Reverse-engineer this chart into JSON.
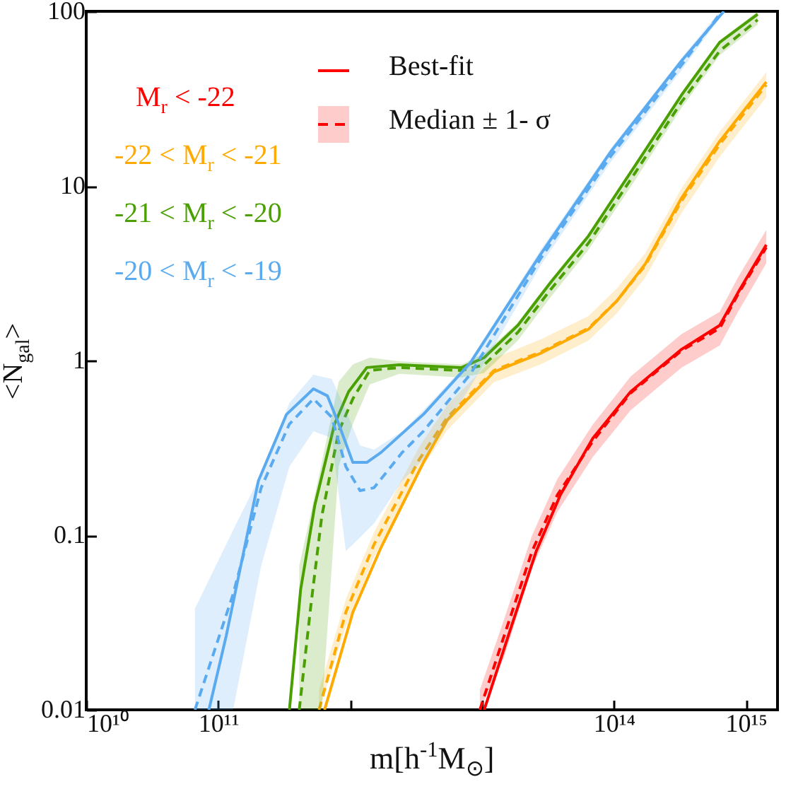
{
  "chart_data": {
    "type": "line",
    "log": "xy",
    "xlabel": "m[h$^{-1}$M$_{⊙}$]",
    "ylabel": "<N$_{gal}$>",
    "xlim": [
      10000000000.0,
      1740000000000000.0
    ],
    "ylim": [
      0.01,
      100
    ],
    "xticks": [
      {
        "value": 10000000000.0,
        "label": "10¹⁰"
      },
      {
        "value": 100000000000.0,
        "label": "10¹¹"
      },
      {
        "value": 1000000000000.0,
        "label": null
      },
      {
        "value": 10000000000000.0,
        "label": null
      },
      {
        "value": 100000000000000.0,
        "label": "10¹⁴"
      },
      {
        "value": 1000000000000000.0,
        "label": "10¹⁵"
      }
    ],
    "yticks": [
      0.01,
      0.1,
      1,
      10,
      100
    ],
    "legend": "top left",
    "annotations": [
      "Best-fit",
      "Median ± 1- σ"
    ],
    "series": [
      {
        "name": "M$_{r}$ < -22",
        "color": "#ff0000",
        "x": [
          10400000000000.0,
          15800000000000.0,
          25800000000000.0,
          39300000000000.0,
          69200000000000.0,
          134000000000000.0,
          326000000000000.0,
          634000000000000.0,
          873000000000000.0,
          1430000000000000.0
        ],
        "values": [
          0.01,
          0.0264,
          0.081,
          0.17,
          0.359,
          0.664,
          1.16,
          1.59,
          2.45,
          4.6
        ]
      },
      {
        "color": "#ff0000",
        "line_style": "dashed",
        "x": [
          9640000000000.0,
          14700000000000.0,
          24000000000000.0,
          37300000000000.0,
          69200000000000.0,
          134000000000000.0,
          326000000000000.0,
          634000000000000.0,
          873000000000000.0,
          1430000000000000.0
        ],
        "values": [
          0.01,
          0.0264,
          0.081,
          0.17,
          0.345,
          0.652,
          1.14,
          1.53,
          2.4,
          4.45
        ],
        "lower": [
          0.01,
          0.02,
          0.065,
          0.136,
          0.28,
          0.52,
          0.91,
          1.22,
          1.9,
          3.6
        ],
        "upper": [
          0.013,
          0.033,
          0.1,
          0.21,
          0.43,
          0.81,
          1.42,
          1.9,
          3.0,
          5.6
        ]
      },
      {
        "name": "-22 < M$_{r}$ < -21",
        "color": "#ffaa00",
        "x": [
          641000000000.0,
          1050000000000.0,
          1720000000000.0,
          3600000000000.0,
          5470000000000.0,
          12300000000000.0,
          27800000000000.0,
          64100000000000.0,
          105000000000000.0,
          172000000000000.0,
          326000000000000.0,
          634000000000000.0,
          1430000000000000.0
        ],
        "values": [
          0.01,
          0.0362,
          0.0853,
          0.261,
          0.457,
          0.861,
          1.1,
          1.51,
          2.19,
          3.55,
          8.53,
          18.0,
          39.4
        ]
      },
      {
        "color": "#ffaa00",
        "line_style": "dashed",
        "x": [
          582000000000.0,
          929000000000.0,
          1520000000000.0,
          3340000000000.0,
          5470000000000.0,
          12300000000000.0,
          27800000000000.0,
          64100000000000.0,
          105000000000000.0,
          172000000000000.0,
          326000000000000.0,
          634000000000000.0,
          1430000000000000.0
        ],
        "values": [
          0.01,
          0.0362,
          0.0885,
          0.271,
          0.474,
          0.877,
          1.12,
          1.53,
          2.19,
          3.49,
          8.22,
          17.3,
          37.9
        ],
        "lower": [
          0.01,
          0.03,
          0.075,
          0.23,
          0.4,
          0.75,
          0.95,
          1.3,
          1.86,
          2.97,
          7.0,
          14.7,
          32.2
        ],
        "upper": [
          0.013,
          0.043,
          0.104,
          0.32,
          0.56,
          1.03,
          1.32,
          1.8,
          2.58,
          4.1,
          9.7,
          20.4,
          44.7
        ]
      },
      {
        "name": "-21 < M$_{r}$ < -20",
        "color": "#4aa000",
        "x": [
          347000000000.0,
          422000000000.0,
          541000000000.0,
          763000000000.0,
          975000000000.0,
          1340000000000.0,
          2370000000000.0,
          7000000000000.0,
          10400000000000.0,
          18700000000000.0,
          33000000000000.0,
          64100000000000.0,
          145000000000000.0,
          326000000000000.0,
          634000000000000.0,
          1230000000000000.0
        ],
        "values": [
          0.01,
          0.0488,
          0.149,
          0.433,
          0.664,
          0.912,
          0.946,
          0.912,
          1.04,
          1.59,
          2.79,
          5.16,
          13.1,
          33.2,
          66.4,
          96.3
        ]
      },
      {
        "color": "#4aa000",
        "line_style": "dashed",
        "x": [
          412000000000.0,
          502000000000.0,
          611000000000.0,
          821000000000.0,
          1050000000000.0,
          1410000000000.0,
          2370000000000.0,
          7000000000000.0,
          10400000000000.0,
          18700000000000.0,
          33000000000000.0,
          64100000000000.0,
          145000000000000.0,
          326000000000000.0,
          634000000000000.0,
          1230000000000000.0
        ],
        "values": [
          0.01,
          0.0383,
          0.129,
          0.394,
          0.604,
          0.877,
          0.912,
          0.877,
          0.946,
          1.45,
          2.54,
          4.7,
          11.9,
          30.3,
          59.3,
          89.4
        ],
        "lower": [
          0.01,
          0.01,
          0.01,
          0.25,
          0.433,
          0.73,
          0.84,
          0.8,
          0.85,
          1.3,
          2.3,
          4.3,
          10.8,
          28,
          56,
          84
        ],
        "upper": [
          0.067,
          0.131,
          0.261,
          0.757,
          0.95,
          1.04,
          0.99,
          0.95,
          1.1,
          1.65,
          2.9,
          5.3,
          13.3,
          34,
          68,
          100
        ]
      },
      {
        "name": "-20 < M$_{r}$ < -19",
        "color": "#5aaaf0",
        "x": [
          85100000000.0,
          115000000000.0,
          202000000000.0,
          330000000000.0,
          528000000000.0,
          674000000000.0,
          821000000000.0,
          1050000000000.0,
          1340000000000.0,
          1720000000000.0,
          3600000000000.0,
          8110000000000.0,
          27800000000000.0,
          95300000000000.0,
          326000000000000.0,
          682000000000000.0
        ],
        "values": [
          0.01,
          0.0264,
          0.205,
          0.492,
          0.689,
          0.628,
          0.433,
          0.261,
          0.261,
          0.298,
          0.492,
          0.964,
          4.05,
          15.8,
          52.1,
          100
        ]
      },
      {
        "color": "#5aaaf0",
        "line_style": "dashed",
        "x": [
          66700000000.0,
          130000000000.0,
          212000000000.0,
          347000000000.0,
          528000000000.0,
          726000000000.0,
          929000000000.0,
          1190000000000.0,
          1520000000000.0,
          2490000000000.0,
          3600000000000.0,
          8110000000000.0,
          27800000000000.0,
          95300000000000.0,
          326000000000000.0,
          634000000000000.0
        ],
        "values": [
          0.01,
          0.0461,
          0.187,
          0.433,
          0.604,
          0.474,
          0.247,
          0.18,
          0.187,
          0.298,
          0.394,
          0.83,
          3.83,
          14.9,
          49.2,
          96.3
        ],
        "lower": [
          0.01,
          0.01,
          0.067,
          0.247,
          0.394,
          0.36,
          0.081,
          0.097,
          0.117,
          0.205,
          0.271,
          0.7,
          3.5,
          13.8,
          46,
          92
        ],
        "upper": [
          0.038,
          0.107,
          0.225,
          0.571,
          0.83,
          0.785,
          0.521,
          0.327,
          0.309,
          0.394,
          0.521,
          1.0,
          4.3,
          16.5,
          54,
          100
        ]
      }
    ]
  }
}
